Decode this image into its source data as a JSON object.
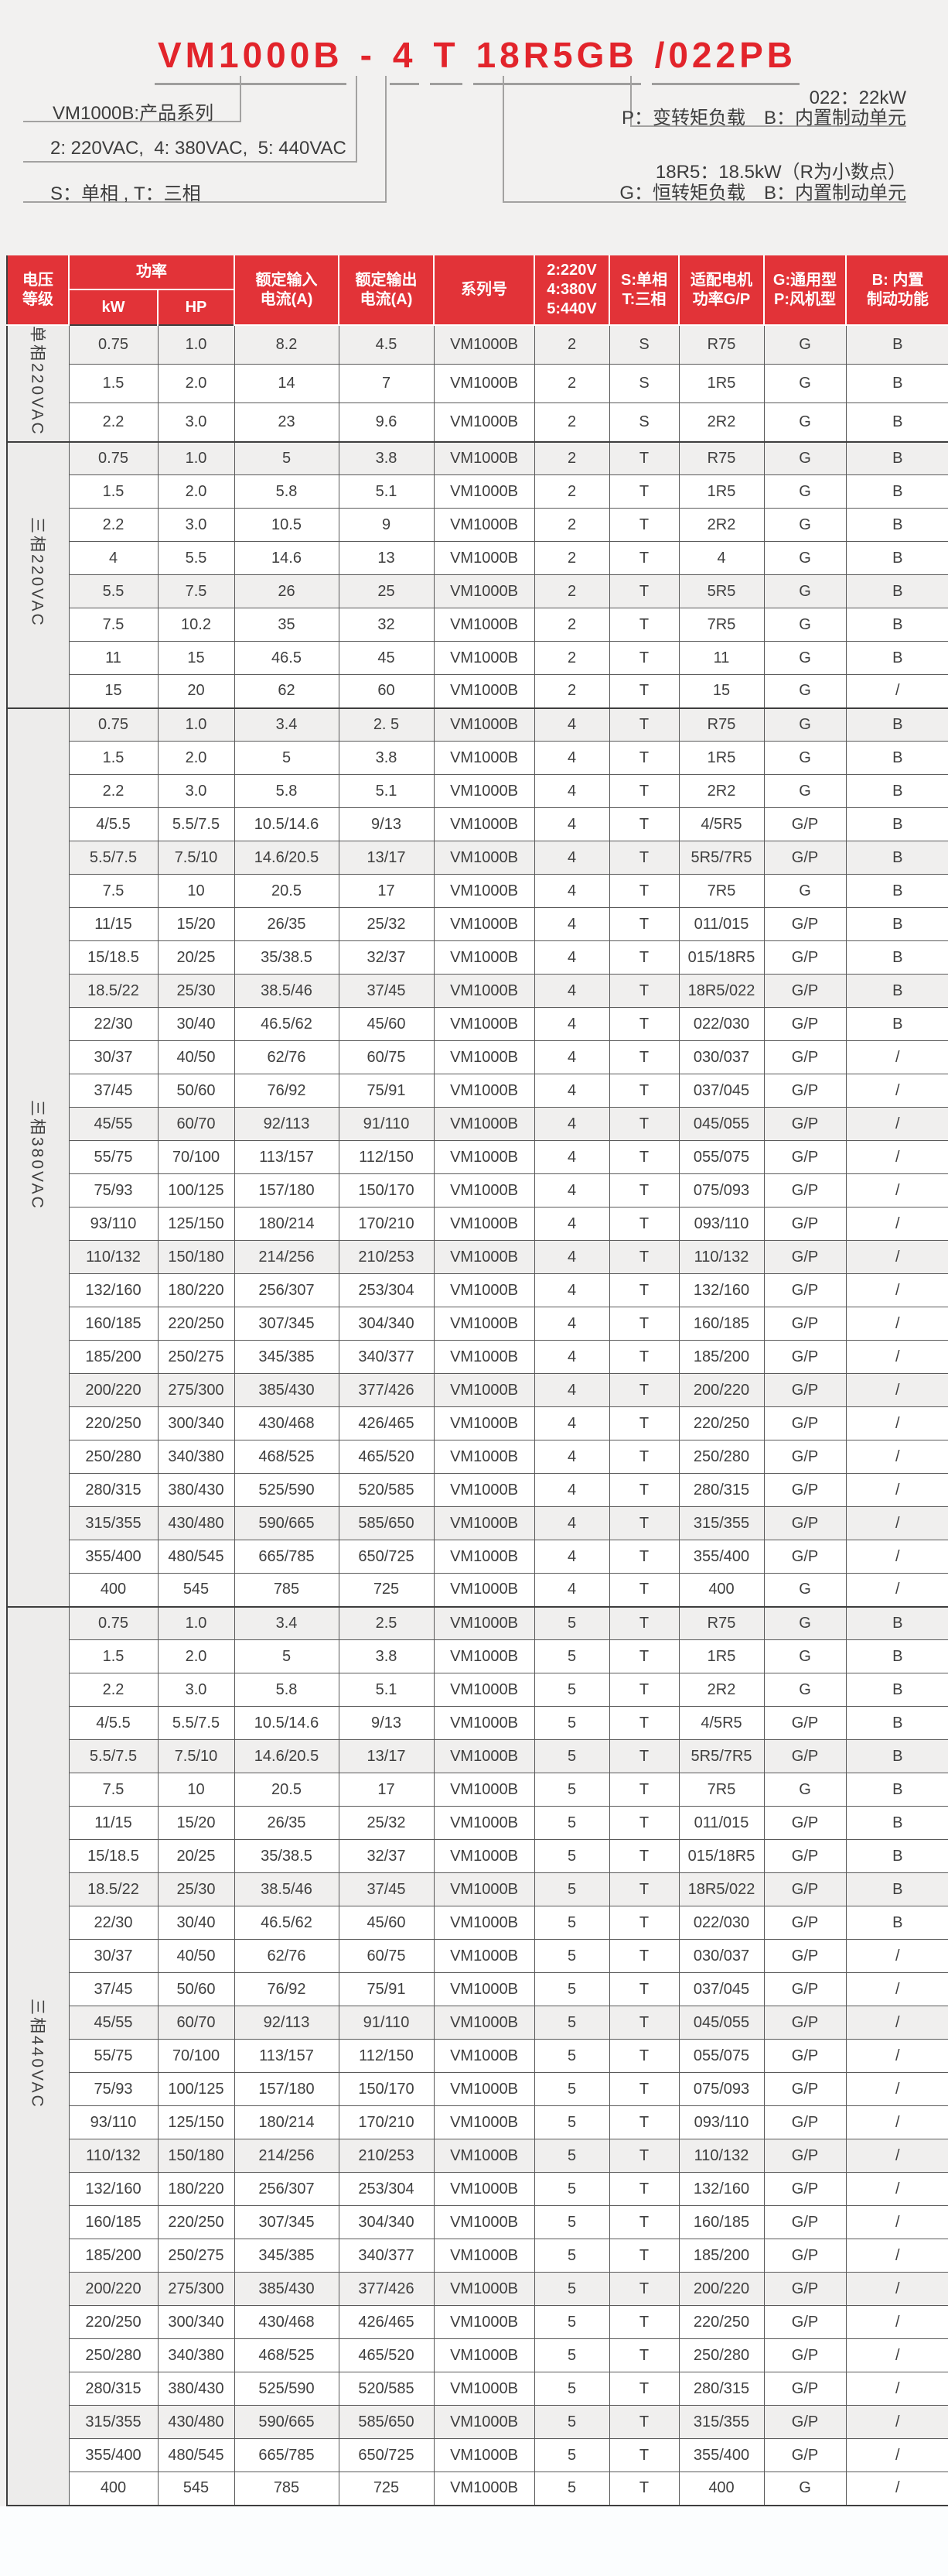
{
  "colors": {
    "title_red": "#e2242b",
    "header_red": "#e23338",
    "shade_gray": "#f0efee",
    "label_gray": "#edeceb"
  },
  "diagram": {
    "model_parts": [
      "VM1000B",
      "-",
      "4",
      "T",
      "18R5GB",
      "/022PB"
    ],
    "note_series": "VM1000B:产品系列",
    "note_voltage": "2: 220VAC,  4: 380VAC,  5: 440VAC",
    "note_phase": "S：单相 , T：三相",
    "note_power_kw": "022：22kW",
    "note_p_load": "P：变转矩负载　B：内置制动单元",
    "note_kw_decimal": "18R5：18.5kW（R为小数点）",
    "note_g_load": "G：恒转矩负载　B：内置制动单元"
  },
  "table": {
    "header": {
      "voltage": "电压\n等级",
      "power": "功率",
      "kw": "kW",
      "hp": "HP",
      "input": "额定输入\n电流(A)",
      "output": "额定输出\n电流(A)",
      "series": "系列号",
      "volt_codes": "2:220V\n4:380V\n5:440V",
      "phase_codes": "S:单相\nT:三相",
      "motor": "适配电机\n功率G/P",
      "type": "G:通用型\nP:风机型",
      "brake": "B: 内置\n制动功能"
    },
    "groups": [
      {
        "label": "单相220VAC",
        "series": "VM1000B",
        "volt_code": "2",
        "phase_code": "S",
        "rows": [
          [
            "0.75",
            "1.0",
            "8.2",
            "4.5",
            "R75",
            "G",
            "B"
          ],
          [
            "1.5",
            "2.0",
            "14",
            "7",
            "1R5",
            "G",
            "B"
          ],
          [
            "2.2",
            "3.0",
            "23",
            "9.6",
            "2R2",
            "G",
            "B"
          ]
        ]
      },
      {
        "label": "三相220VAC",
        "series": "VM1000B",
        "volt_code": "2",
        "phase_code": "T",
        "rows": [
          [
            "0.75",
            "1.0",
            "5",
            "3.8",
            "R75",
            "G",
            "B"
          ],
          [
            "1.5",
            "2.0",
            "5.8",
            "5.1",
            "1R5",
            "G",
            "B"
          ],
          [
            "2.2",
            "3.0",
            "10.5",
            "9",
            "2R2",
            "G",
            "B"
          ],
          [
            "4",
            "5.5",
            "14.6",
            "13",
            "4",
            "G",
            "B"
          ],
          [
            "5.5",
            "7.5",
            "26",
            "25",
            "5R5",
            "G",
            "B"
          ],
          [
            "7.5",
            "10.2",
            "35",
            "32",
            "7R5",
            "G",
            "B"
          ],
          [
            "11",
            "15",
            "46.5",
            "45",
            "11",
            "G",
            "B"
          ],
          [
            "15",
            "20",
            "62",
            "60",
            "15",
            "G",
            "/"
          ]
        ]
      },
      {
        "label": "三相380VAC",
        "series": "VM1000B",
        "volt_code": "4",
        "phase_code": "T",
        "rows": [
          [
            "0.75",
            "1.0",
            "3.4",
            "2. 5",
            "R75",
            "G",
            "B"
          ],
          [
            "1.5",
            "2.0",
            "5",
            "3.8",
            "1R5",
            "G",
            "B"
          ],
          [
            "2.2",
            "3.0",
            "5.8",
            "5.1",
            "2R2",
            "G",
            "B"
          ],
          [
            "4/5.5",
            "5.5/7.5",
            "10.5/14.6",
            "9/13",
            "4/5R5",
            "G/P",
            "B"
          ],
          [
            "5.5/7.5",
            "7.5/10",
            "14.6/20.5",
            "13/17",
            "5R5/7R5",
            "G/P",
            "B"
          ],
          [
            "7.5",
            "10",
            "20.5",
            "17",
            "7R5",
            "G",
            "B"
          ],
          [
            "11/15",
            "15/20",
            "26/35",
            "25/32",
            "011/015",
            "G/P",
            "B"
          ],
          [
            "15/18.5",
            "20/25",
            "35/38.5",
            "32/37",
            "015/18R5",
            "G/P",
            "B"
          ],
          [
            "18.5/22",
            "25/30",
            "38.5/46",
            "37/45",
            "18R5/022",
            "G/P",
            "B"
          ],
          [
            "22/30",
            "30/40",
            "46.5/62",
            "45/60",
            "022/030",
            "G/P",
            "B"
          ],
          [
            "30/37",
            "40/50",
            "62/76",
            "60/75",
            "030/037",
            "G/P",
            "/"
          ],
          [
            "37/45",
            "50/60",
            "76/92",
            "75/91",
            "037/045",
            "G/P",
            "/"
          ],
          [
            "45/55",
            "60/70",
            "92/113",
            "91/110",
            "045/055",
            "G/P",
            "/"
          ],
          [
            "55/75",
            "70/100",
            "113/157",
            "112/150",
            "055/075",
            "G/P",
            "/"
          ],
          [
            "75/93",
            "100/125",
            "157/180",
            "150/170",
            "075/093",
            "G/P",
            "/"
          ],
          [
            "93/110",
            "125/150",
            "180/214",
            "170/210",
            "093/110",
            "G/P",
            "/"
          ],
          [
            "110/132",
            "150/180",
            "214/256",
            "210/253",
            "110/132",
            "G/P",
            "/"
          ],
          [
            "132/160",
            "180/220",
            "256/307",
            "253/304",
            "132/160",
            "G/P",
            "/"
          ],
          [
            "160/185",
            "220/250",
            "307/345",
            "304/340",
            "160/185",
            "G/P",
            "/"
          ],
          [
            "185/200",
            "250/275",
            "345/385",
            "340/377",
            "185/200",
            "G/P",
            "/"
          ],
          [
            "200/220",
            "275/300",
            "385/430",
            "377/426",
            "200/220",
            "G/P",
            "/"
          ],
          [
            "220/250",
            "300/340",
            "430/468",
            "426/465",
            "220/250",
            "G/P",
            "/"
          ],
          [
            "250/280",
            "340/380",
            "468/525",
            "465/520",
            "250/280",
            "G/P",
            "/"
          ],
          [
            "280/315",
            "380/430",
            "525/590",
            "520/585",
            "280/315",
            "G/P",
            "/"
          ],
          [
            "315/355",
            "430/480",
            "590/665",
            "585/650",
            "315/355",
            "G/P",
            "/"
          ],
          [
            "355/400",
            "480/545",
            "665/785",
            "650/725",
            "355/400",
            "G/P",
            "/"
          ],
          [
            "400",
            "545",
            "785",
            "725",
            "400",
            "G",
            "/"
          ]
        ]
      },
      {
        "label": "三相440VAC",
        "series": "VM1000B",
        "volt_code": "5",
        "phase_code": "T",
        "rows": [
          [
            "0.75",
            "1.0",
            "3.4",
            "2.5",
            "R75",
            "G",
            "B"
          ],
          [
            "1.5",
            "2.0",
            "5",
            "3.8",
            "1R5",
            "G",
            "B"
          ],
          [
            "2.2",
            "3.0",
            "5.8",
            "5.1",
            "2R2",
            "G",
            "B"
          ],
          [
            "4/5.5",
            "5.5/7.5",
            "10.5/14.6",
            "9/13",
            "4/5R5",
            "G/P",
            "B"
          ],
          [
            "5.5/7.5",
            "7.5/10",
            "14.6/20.5",
            "13/17",
            "5R5/7R5",
            "G/P",
            "B"
          ],
          [
            "7.5",
            "10",
            "20.5",
            "17",
            "7R5",
            "G",
            "B"
          ],
          [
            "11/15",
            "15/20",
            "26/35",
            "25/32",
            "011/015",
            "G/P",
            "B"
          ],
          [
            "15/18.5",
            "20/25",
            "35/38.5",
            "32/37",
            "015/18R5",
            "G/P",
            "B"
          ],
          [
            "18.5/22",
            "25/30",
            "38.5/46",
            "37/45",
            "18R5/022",
            "G/P",
            "B"
          ],
          [
            "22/30",
            "30/40",
            "46.5/62",
            "45/60",
            "022/030",
            "G/P",
            "B"
          ],
          [
            "30/37",
            "40/50",
            "62/76",
            "60/75",
            "030/037",
            "G/P",
            "/"
          ],
          [
            "37/45",
            "50/60",
            "76/92",
            "75/91",
            "037/045",
            "G/P",
            "/"
          ],
          [
            "45/55",
            "60/70",
            "92/113",
            "91/110",
            "045/055",
            "G/P",
            "/"
          ],
          [
            "55/75",
            "70/100",
            "113/157",
            "112/150",
            "055/075",
            "G/P",
            "/"
          ],
          [
            "75/93",
            "100/125",
            "157/180",
            "150/170",
            "075/093",
            "G/P",
            "/"
          ],
          [
            "93/110",
            "125/150",
            "180/214",
            "170/210",
            "093/110",
            "G/P",
            "/"
          ],
          [
            "110/132",
            "150/180",
            "214/256",
            "210/253",
            "110/132",
            "G/P",
            "/"
          ],
          [
            "132/160",
            "180/220",
            "256/307",
            "253/304",
            "132/160",
            "G/P",
            "/"
          ],
          [
            "160/185",
            "220/250",
            "307/345",
            "304/340",
            "160/185",
            "G/P",
            "/"
          ],
          [
            "185/200",
            "250/275",
            "345/385",
            "340/377",
            "185/200",
            "G/P",
            "/"
          ],
          [
            "200/220",
            "275/300",
            "385/430",
            "377/426",
            "200/220",
            "G/P",
            "/"
          ],
          [
            "220/250",
            "300/340",
            "430/468",
            "426/465",
            "220/250",
            "G/P",
            "/"
          ],
          [
            "250/280",
            "340/380",
            "468/525",
            "465/520",
            "250/280",
            "G/P",
            "/"
          ],
          [
            "280/315",
            "380/430",
            "525/590",
            "520/585",
            "280/315",
            "G/P",
            "/"
          ],
          [
            "315/355",
            "430/480",
            "590/665",
            "585/650",
            "315/355",
            "G/P",
            "/"
          ],
          [
            "355/400",
            "480/545",
            "665/785",
            "650/725",
            "355/400",
            "G/P",
            "/"
          ],
          [
            "400",
            "545",
            "785",
            "725",
            "400",
            "G",
            "/"
          ]
        ]
      }
    ]
  }
}
